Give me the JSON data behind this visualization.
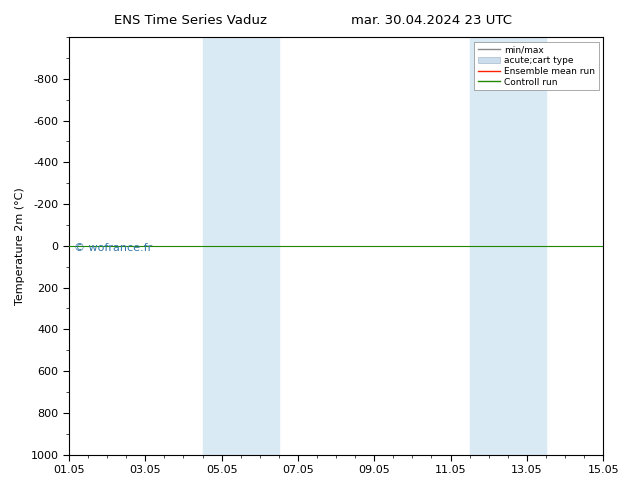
{
  "title_left": "ENS Time Series Vaduz",
  "title_right": "mar. 30.04.2024 23 UTC",
  "ylabel": "Temperature 2m (°C)",
  "ylim_bottom": -1000,
  "ylim_top": 1000,
  "yticks": [
    -800,
    -600,
    -400,
    -200,
    0,
    200,
    400,
    600,
    800,
    1000
  ],
  "xtick_labels": [
    "01.05",
    "03.05",
    "05.05",
    "07.05",
    "09.05",
    "11.05",
    "13.05",
    "15.05"
  ],
  "xtick_positions": [
    0,
    2,
    4,
    6,
    8,
    10,
    12,
    14
  ],
  "xmin": 0,
  "xmax": 14,
  "shade_bands": [
    {
      "xstart": 3.5,
      "xend": 4.5,
      "color": "#daeaf5"
    },
    {
      "xstart": 4.5,
      "xend": 5.5,
      "color": "#daeaf5"
    },
    {
      "xstart": 10.5,
      "xend": 11.5,
      "color": "#daeaf5"
    },
    {
      "xstart": 11.5,
      "xend": 12.5,
      "color": "#daeaf5"
    }
  ],
  "control_run_color": "#228800",
  "ensemble_mean_color": "#ff2200",
  "watermark": "© wofrance.fr",
  "watermark_color": "#3377aa",
  "legend_items": [
    "min/max",
    "acute;cart type",
    "Ensemble mean run",
    "Controll run"
  ],
  "background_color": "#ffffff",
  "title_fontsize": 9.5,
  "axis_fontsize": 8,
  "ylabel_fontsize": 8
}
